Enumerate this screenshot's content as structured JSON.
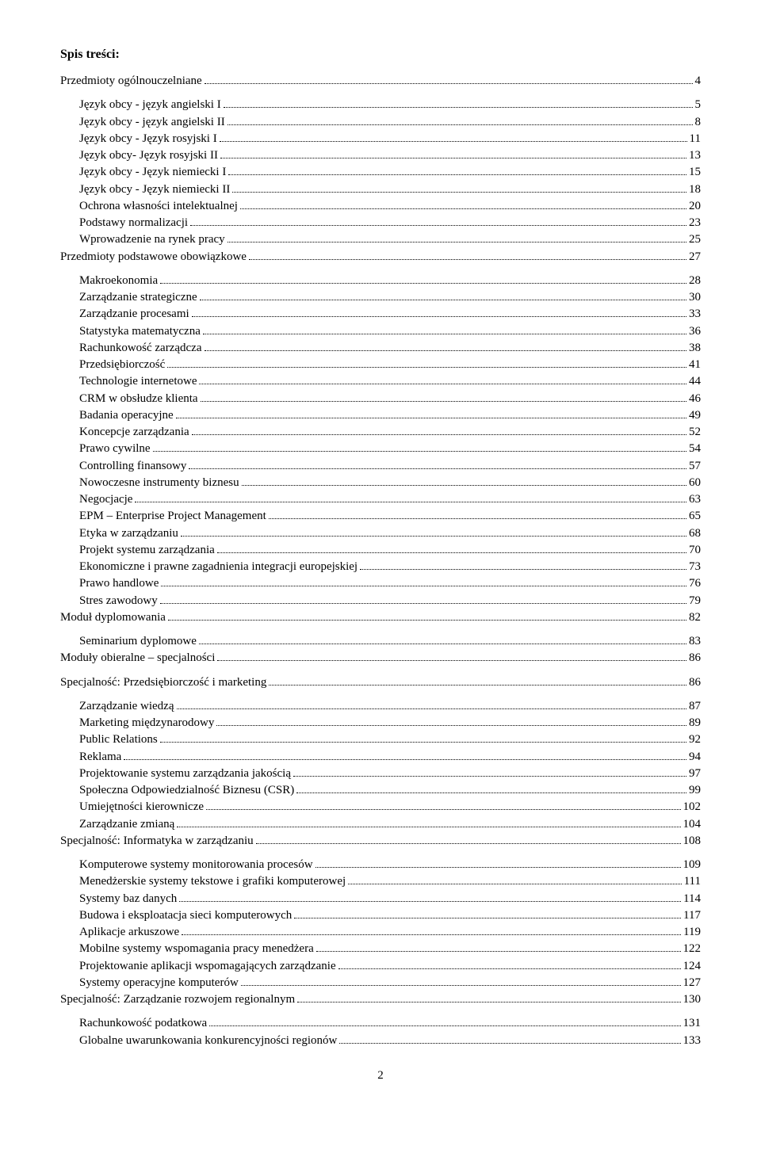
{
  "title": "Spis treści:",
  "pageNumber": "2",
  "entries": [
    {
      "label": "Przedmioty ogólnouczelniane",
      "page": "4",
      "indent": 0,
      "spacer": false
    },
    {
      "label": "Język obcy - język angielski I",
      "page": "5",
      "indent": 1,
      "spacer": true
    },
    {
      "label": "Język obcy - język angielski II",
      "page": "8",
      "indent": 1,
      "spacer": false
    },
    {
      "label": "Język obcy - Język rosyjski I",
      "page": "11",
      "indent": 1,
      "spacer": false
    },
    {
      "label": "Język obcy- Język rosyjski II",
      "page": "13",
      "indent": 1,
      "spacer": false
    },
    {
      "label": "Język obcy - Język niemiecki I",
      "page": "15",
      "indent": 1,
      "spacer": false
    },
    {
      "label": "Język obcy - Język niemiecki II",
      "page": "18",
      "indent": 1,
      "spacer": false
    },
    {
      "label": "Ochrona własności intelektualnej",
      "page": "20",
      "indent": 1,
      "spacer": false
    },
    {
      "label": "Podstawy normalizacji",
      "page": "23",
      "indent": 1,
      "spacer": false
    },
    {
      "label": "Wprowadzenie na rynek pracy",
      "page": "25",
      "indent": 1,
      "spacer": false
    },
    {
      "label": "Przedmioty podstawowe obowiązkowe",
      "page": "27",
      "indent": 0,
      "spacer": false
    },
    {
      "label": "Makroekonomia",
      "page": "28",
      "indent": 1,
      "spacer": true
    },
    {
      "label": "Zarządzanie strategiczne",
      "page": "30",
      "indent": 1,
      "spacer": false
    },
    {
      "label": "Zarządzanie procesami",
      "page": "33",
      "indent": 1,
      "spacer": false
    },
    {
      "label": "Statystyka matematyczna",
      "page": "36",
      "indent": 1,
      "spacer": false
    },
    {
      "label": "Rachunkowość zarządcza",
      "page": "38",
      "indent": 1,
      "spacer": false
    },
    {
      "label": "Przedsiębiorczość",
      "page": "41",
      "indent": 1,
      "spacer": false
    },
    {
      "label": "Technologie internetowe",
      "page": "44",
      "indent": 1,
      "spacer": false
    },
    {
      "label": "CRM w obsłudze klienta",
      "page": "46",
      "indent": 1,
      "spacer": false
    },
    {
      "label": "Badania operacyjne",
      "page": "49",
      "indent": 1,
      "spacer": false
    },
    {
      "label": "Koncepcje zarządzania",
      "page": "52",
      "indent": 1,
      "spacer": false
    },
    {
      "label": "Prawo cywilne",
      "page": "54",
      "indent": 1,
      "spacer": false
    },
    {
      "label": "Controlling finansowy",
      "page": "57",
      "indent": 1,
      "spacer": false
    },
    {
      "label": "Nowoczesne instrumenty biznesu",
      "page": "60",
      "indent": 1,
      "spacer": false
    },
    {
      "label": "Negocjacje",
      "page": "63",
      "indent": 1,
      "spacer": false
    },
    {
      "label": "EPM – Enterprise Project Management",
      "page": "65",
      "indent": 1,
      "spacer": false
    },
    {
      "label": "Etyka w zarządzaniu",
      "page": "68",
      "indent": 1,
      "spacer": false
    },
    {
      "label": "Projekt systemu zarządzania",
      "page": "70",
      "indent": 1,
      "spacer": false
    },
    {
      "label": "Ekonomiczne i prawne zagadnienia integracji europejskiej",
      "page": "73",
      "indent": 1,
      "spacer": false
    },
    {
      "label": "Prawo handlowe",
      "page": "76",
      "indent": 1,
      "spacer": false
    },
    {
      "label": "Stres zawodowy",
      "page": "79",
      "indent": 1,
      "spacer": false
    },
    {
      "label": "Moduł dyplomowania",
      "page": "82",
      "indent": 0,
      "spacer": false
    },
    {
      "label": "Seminarium dyplomowe",
      "page": "83",
      "indent": 1,
      "spacer": true
    },
    {
      "label": "Moduły obieralne – specjalności",
      "page": "86",
      "indent": 0,
      "spacer": false
    },
    {
      "label": "Specjalność: Przedsiębiorczość i marketing",
      "page": "86",
      "indent": 0,
      "spacer": true
    },
    {
      "label": "Zarządzanie wiedzą",
      "page": "87",
      "indent": 1,
      "spacer": true
    },
    {
      "label": "Marketing międzynarodowy",
      "page": "89",
      "indent": 1,
      "spacer": false
    },
    {
      "label": "Public Relations",
      "page": "92",
      "indent": 1,
      "spacer": false
    },
    {
      "label": "Reklama",
      "page": "94",
      "indent": 1,
      "spacer": false
    },
    {
      "label": "Projektowanie systemu zarządzania jakością",
      "page": "97",
      "indent": 1,
      "spacer": false
    },
    {
      "label": "Społeczna Odpowiedzialność Biznesu (CSR)",
      "page": "99",
      "indent": 1,
      "spacer": false
    },
    {
      "label": "Umiejętności kierownicze",
      "page": "102",
      "indent": 1,
      "spacer": false
    },
    {
      "label": "Zarządzanie zmianą",
      "page": "104",
      "indent": 1,
      "spacer": false
    },
    {
      "label": "Specjalność: Informatyka w zarządzaniu",
      "page": "108",
      "indent": 0,
      "spacer": false
    },
    {
      "label": "Komputerowe systemy monitorowania procesów",
      "page": "109",
      "indent": 1,
      "spacer": true
    },
    {
      "label": "Menedżerskie systemy tekstowe i grafiki komputerowej",
      "page": "111",
      "indent": 1,
      "spacer": false
    },
    {
      "label": "Systemy baz danych",
      "page": "114",
      "indent": 1,
      "spacer": false
    },
    {
      "label": "Budowa i eksploatacja sieci komputerowych",
      "page": "117",
      "indent": 1,
      "spacer": false
    },
    {
      "label": "Aplikacje arkuszowe",
      "page": "119",
      "indent": 1,
      "spacer": false
    },
    {
      "label": "Mobilne systemy wspomagania pracy menedżera",
      "page": "122",
      "indent": 1,
      "spacer": false
    },
    {
      "label": "Projektowanie aplikacji wspomagających zarządzanie",
      "page": "124",
      "indent": 1,
      "spacer": false
    },
    {
      "label": "Systemy operacyjne komputerów",
      "page": "127",
      "indent": 1,
      "spacer": false
    },
    {
      "label": "Specjalność: Zarządzanie rozwojem regionalnym",
      "page": "130",
      "indent": 0,
      "spacer": false
    },
    {
      "label": "Rachunkowość podatkowa",
      "page": "131",
      "indent": 1,
      "spacer": true
    },
    {
      "label": "Globalne uwarunkowania konkurencyjności regionów",
      "page": "133",
      "indent": 1,
      "spacer": false
    }
  ]
}
